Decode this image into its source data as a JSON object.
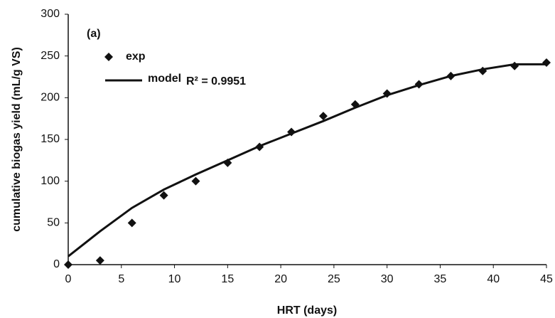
{
  "chart_data": {
    "type": "scatter",
    "panel_label": "(a)",
    "annotation": "R² = 0.9951",
    "x_label": "HRT (days)",
    "y_label": "cumulative biogas yield (mL/g VS)",
    "x": [
      0,
      3,
      6,
      9,
      12,
      15,
      18,
      21,
      24,
      27,
      30,
      33,
      36,
      39,
      42,
      45
    ],
    "series": [
      {
        "name": "exp",
        "color": "#111111",
        "marker": "diamond",
        "values": [
          0,
          5,
          50,
          83,
          100,
          122,
          141,
          159,
          178,
          192,
          205,
          216,
          226,
          232,
          238,
          242
        ]
      },
      {
        "name": "model",
        "color": "#111111",
        "marker": "line",
        "values": [
          10,
          40,
          68,
          90,
          108,
          125,
          142,
          157,
          172,
          188,
          203,
          215,
          226,
          234,
          240,
          240
        ]
      }
    ],
    "xlim": [
      0,
      45
    ],
    "xticks": [
      0,
      5,
      10,
      15,
      20,
      25,
      30,
      35,
      40,
      45
    ],
    "ylim": [
      0,
      300
    ],
    "yticks": [
      0,
      50,
      100,
      150,
      200,
      250,
      300
    ],
    "grid": false
  }
}
